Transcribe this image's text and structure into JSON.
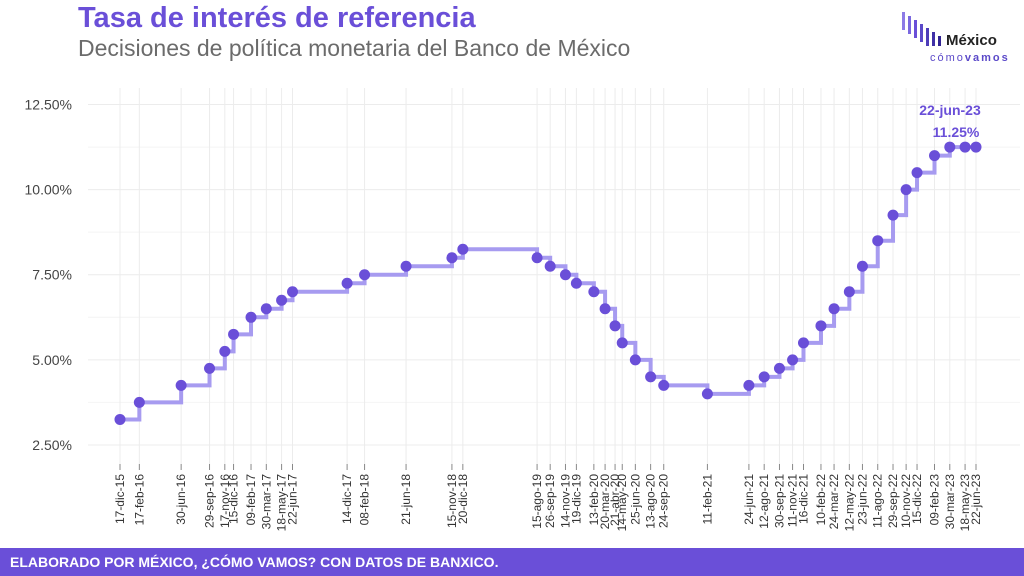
{
  "header": {
    "title": "Tasa de interés de referencia",
    "subtitle": "Decisiones de política monetaria del Banco de México"
  },
  "logo": {
    "word": "México",
    "sub_a": "cómo",
    "sub_b": "vamos"
  },
  "footer": {
    "credit": "ELABORADO POR MÉXICO, ¿CÓMO VAMOS? CON DATOS DE BANXICO."
  },
  "colors": {
    "accent": "#6a4fd8",
    "step_line": "#a79bf0",
    "point": "#6a4fd8",
    "grid": "#ececec"
  },
  "chart_data": {
    "type": "line",
    "step": true,
    "grid": true,
    "ylim": [
      2.0,
      12.75
    ],
    "y_ticks": [
      "2.50%",
      "5.00%",
      "7.50%",
      "10.00%",
      "12.50%"
    ],
    "y_tick_values": [
      2.5,
      5.0,
      7.5,
      10.0,
      12.5
    ],
    "dates": [
      "2015-12-17",
      "2016-02-17",
      "2016-06-30",
      "2016-09-29",
      "2016-11-17",
      "2016-12-15",
      "2017-02-09",
      "2017-03-30",
      "2017-05-18",
      "2017-06-22",
      "2017-12-14",
      "2018-02-08",
      "2018-06-21",
      "2018-11-15",
      "2018-12-20",
      "2019-08-15",
      "2019-09-26",
      "2019-11-14",
      "2019-12-19",
      "2020-02-13",
      "2020-03-20",
      "2020-04-21",
      "2020-05-14",
      "2020-06-25",
      "2020-08-13",
      "2020-09-24",
      "2021-02-11",
      "2021-06-24",
      "2021-08-12",
      "2021-09-30",
      "2021-11-11",
      "2021-12-16",
      "2022-02-10",
      "2022-03-24",
      "2022-05-12",
      "2022-06-23",
      "2022-08-11",
      "2022-09-29",
      "2022-11-10",
      "2022-12-15",
      "2023-02-09",
      "2023-03-30",
      "2023-05-18",
      "2023-06-22"
    ],
    "x_labels": [
      "17-dic-15",
      "17-feb-16",
      "30-jun-16",
      "29-sep-16",
      "17-nov-16",
      "15-dic-16",
      "09-feb-17",
      "30-mar-17",
      "18-may-17",
      "22-jun-17",
      "14-dic-17",
      "08-feb-18",
      "21-jun-18",
      "15-nov-18",
      "20-dic-18",
      "15-ago-19",
      "26-sep-19",
      "14-nov-19",
      "19-dic-19",
      "13-feb-20",
      "20-mar-20",
      "21-abr-20",
      "14-may-20",
      "25-jun-20",
      "13-ago-20",
      "24-sep-20",
      "11-feb-21",
      "24-jun-21",
      "12-ago-21",
      "30-sep-21",
      "11-nov-21",
      "16-dic-21",
      "10-feb-22",
      "24-mar-22",
      "12-may-22",
      "23-jun-22",
      "11-ago-22",
      "29-sep-22",
      "10-nov-22",
      "15-dic-22",
      "09-feb-23",
      "30-mar-23",
      "18-may-23",
      "22-jun-23"
    ],
    "values": [
      3.25,
      3.75,
      4.25,
      4.75,
      5.25,
      5.75,
      6.25,
      6.5,
      6.75,
      7.0,
      7.25,
      7.5,
      7.75,
      8.0,
      8.25,
      8.0,
      7.75,
      7.5,
      7.25,
      7.0,
      6.5,
      6.0,
      5.5,
      5.0,
      4.5,
      4.25,
      4.0,
      4.25,
      4.5,
      4.75,
      5.0,
      5.5,
      6.0,
      6.5,
      7.0,
      7.75,
      8.5,
      9.25,
      10.0,
      10.5,
      11.0,
      11.25,
      11.25,
      11.25
    ],
    "annotation": {
      "date_label": "22-jun-23",
      "value_label": "11.25%"
    }
  }
}
